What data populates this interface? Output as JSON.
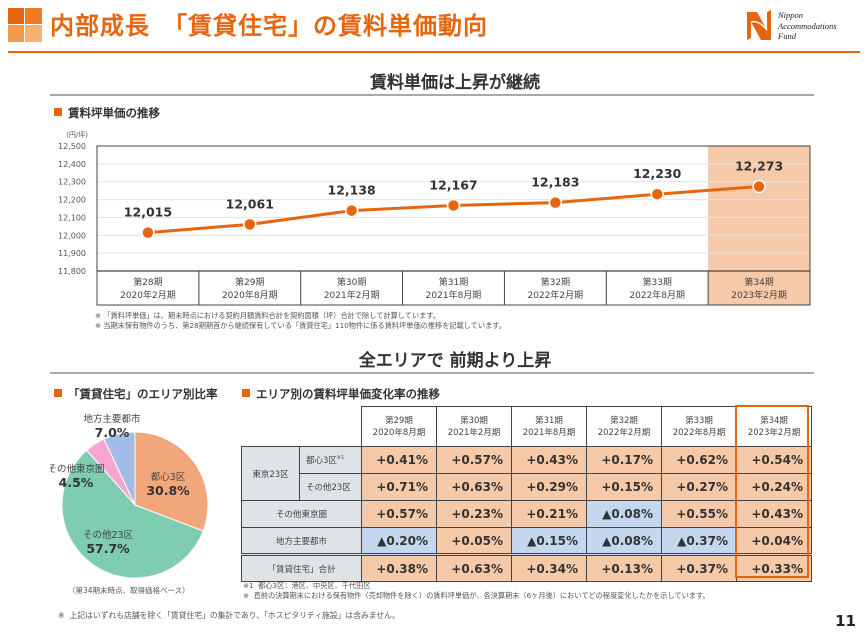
{
  "header": {
    "title": "内部成長　「賃貸住宅」の賃料単価動向",
    "logo": [
      "Nippon",
      "Accommodations",
      "Fund"
    ],
    "accent_color": "#e8650f"
  },
  "section1": {
    "headline": "賃料単価は上昇が継続",
    "subtitle": "賃料坪単価の推移"
  },
  "chart_data": [
    {
      "type": "line",
      "title": "賃料坪単価の推移",
      "ylabel": "(円/坪)",
      "xlabel": "",
      "ylim": [
        11800,
        12500
      ],
      "yticks": [
        "11,800",
        "11,900",
        "12,000",
        "12,100",
        "12,200",
        "12,300",
        "12,400",
        "12,500"
      ],
      "ytick_values": [
        11800,
        11900,
        12000,
        12100,
        12200,
        12300,
        12400,
        12500
      ],
      "grid": true,
      "categories": [
        {
          "period": "第28期",
          "date": "2020年2月期"
        },
        {
          "period": "第29期",
          "date": "2020年8月期"
        },
        {
          "period": "第30期",
          "date": "2021年2月期"
        },
        {
          "period": "第31期",
          "date": "2021年8月期"
        },
        {
          "period": "第32期",
          "date": "2022年2月期"
        },
        {
          "period": "第33期",
          "date": "2022年8月期"
        },
        {
          "period": "第34期",
          "date": "2023年2月期"
        }
      ],
      "values": [
        12015,
        12061,
        12138,
        12167,
        12183,
        12230,
        12273
      ],
      "labels": [
        "12,015",
        "12,061",
        "12,138",
        "12,167",
        "12,183",
        "12,230",
        "12,273"
      ],
      "highlight_index": 6,
      "line_color": "#e8650f",
      "highlight_color": "#f6c9a8"
    },
    {
      "type": "pie",
      "title": "「賃貸住宅」のエリア別比率",
      "slices": [
        {
          "name": "都心3区",
          "value": 30.8,
          "label": "30.8%",
          "color": "#f2a77a"
        },
        {
          "name": "その他23区",
          "value": 57.7,
          "label": "57.7%",
          "color": "#7fcdb0"
        },
        {
          "name": "その他東京圏",
          "value": 4.5,
          "label": "4.5%",
          "color": "#f4a6d0"
        },
        {
          "name": "地方主要都市",
          "value": 7.0,
          "label": "7.0%",
          "color": "#a4bce8"
        }
      ],
      "caption": "（第34期末時点、取得価格ベース）"
    }
  ],
  "chart_notes": [
    "※ 「賃料坪単価」は、期末時点における契約月額賃料合計を契約面積（坪）合計で除して計算しています。",
    "※ 当期末保有物件のうち、第28期期首から継続保有している「賃貸住宅」110物件に係る賃料坪単価の推移を記載しています。"
  ],
  "section2": {
    "headline": "全エリアで 前期より上昇",
    "pie_subtitle": "「賃貸住宅」のエリア別比率",
    "table_subtitle": "エリア別の賃料坪単価変化率の推移"
  },
  "table": {
    "columns": [
      {
        "period": "第29期",
        "date": "2020年8月期"
      },
      {
        "period": "第30期",
        "date": "2021年2月期"
      },
      {
        "period": "第31期",
        "date": "2021年8月期"
      },
      {
        "period": "第32期",
        "date": "2022年2月期"
      },
      {
        "period": "第33期",
        "date": "2022年8月期"
      },
      {
        "period": "第34期",
        "date": "2023年2月期"
      }
    ],
    "group_label": "東京23区",
    "rows": [
      {
        "label": "都心3区",
        "sup": "※1",
        "values": [
          "+0.41%",
          "+0.57%",
          "+0.43%",
          "+0.17%",
          "+0.62%",
          "+0.54%"
        ],
        "neg": [
          false,
          false,
          false,
          false,
          false,
          false
        ]
      },
      {
        "label": "その他23区",
        "sup": "",
        "values": [
          "+0.71%",
          "+0.63%",
          "+0.29%",
          "+0.15%",
          "+0.27%",
          "+0.24%"
        ],
        "neg": [
          false,
          false,
          false,
          false,
          false,
          false
        ]
      },
      {
        "label": "その他東京圏",
        "sup": "",
        "values": [
          "+0.57%",
          "+0.23%",
          "+0.21%",
          "▲0.08%",
          "+0.55%",
          "+0.43%"
        ],
        "neg": [
          false,
          false,
          false,
          true,
          false,
          false
        ]
      },
      {
        "label": "地方主要都市",
        "sup": "",
        "values": [
          "▲0.20%",
          "+0.05%",
          "▲0.15%",
          "▲0.08%",
          "▲0.37%",
          "+0.04%"
        ],
        "neg": [
          true,
          false,
          true,
          true,
          true,
          false
        ]
      },
      {
        "label": "「賃貸住宅」合計",
        "sup": "",
        "values": [
          "+0.38%",
          "+0.63%",
          "+0.34%",
          "+0.13%",
          "+0.37%",
          "+0.33%"
        ],
        "neg": [
          false,
          false,
          false,
          false,
          false,
          false
        ]
      }
    ],
    "notes": [
      "※1  都心3区：港区、中央区、千代田区",
      "※  直前の決算期末における保有物件（売却物件を除く）の賃料坪単価が、各決算期末（6ヶ月後）においてどの程度変化したかを示しています。"
    ]
  },
  "footer": {
    "note": "※  上記はいずれも店舗を除く「賃貸住宅」の集計であり、「ホスピタリティ施設」は含みません。",
    "page_number": "11"
  }
}
